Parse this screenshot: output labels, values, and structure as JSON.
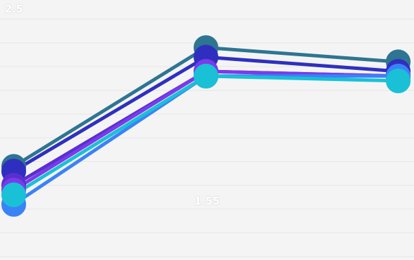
{
  "chart_data": {
    "type": "line",
    "categories": [
      "",
      "",
      ""
    ],
    "grid": true,
    "ylim": [
      0,
      2.6
    ],
    "series": [
      {
        "color": "#2e7592",
        "values": [
          0.95,
          2.2,
          2.05
        ]
      },
      {
        "color": "#2f2fbf",
        "values": [
          0.9,
          2.1,
          1.95
        ]
      },
      {
        "color": "#5a2fd0",
        "values": [
          0.75,
          1.95,
          1.9
        ]
      },
      {
        "color": "#7a3bea",
        "values": [
          0.7,
          1.95,
          1.9
        ]
      },
      {
        "color": "#3b82f6",
        "values": [
          0.55,
          1.9,
          1.9
        ]
      },
      {
        "color": "#19c0d6",
        "values": [
          0.65,
          1.9,
          1.85
        ]
      }
    ],
    "annotations": [
      {
        "text": "2.5"
      },
      {
        "text": "1.55"
      }
    ]
  }
}
